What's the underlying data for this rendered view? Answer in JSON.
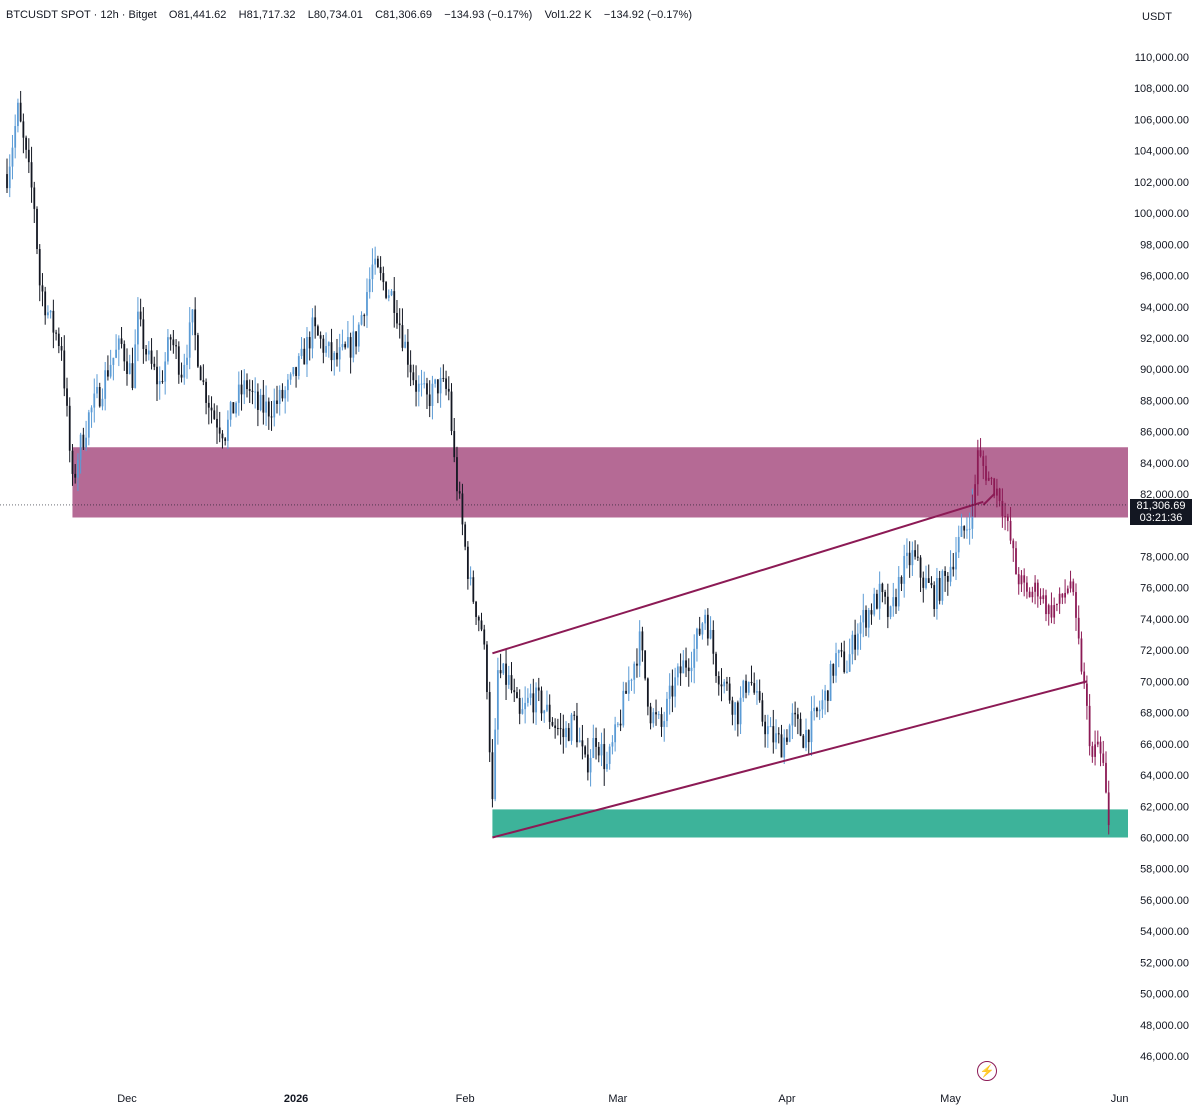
{
  "header": {
    "symbol": "BTCUSDT SPOT",
    "interval": "12h",
    "exchange": "Bitget",
    "open": "O81,441.62",
    "high": "H81,717.32",
    "low": "L80,734.01",
    "close": "C81,306.69",
    "change": "−134.93 (−0.17%)",
    "volume": "Vol1.22 K",
    "volume_change": "−134.92 (−0.17%)"
  },
  "price_scale": {
    "currency": "USDT",
    "ticks": [
      "110,000.00",
      "108,000.00",
      "106,000.00",
      "104,000.00",
      "102,000.00",
      "100,000.00",
      "98,000.00",
      "96,000.00",
      "94,000.00",
      "92,000.00",
      "90,000.00",
      "88,000.00",
      "86,000.00",
      "84,000.00",
      "82,000.00",
      "78,000.00",
      "76,000.00",
      "74,000.00",
      "72,000.00",
      "70,000.00",
      "68,000.00",
      "66,000.00",
      "64,000.00",
      "62,000.00",
      "60,000.00",
      "58,000.00",
      "56,000.00",
      "54,000.00",
      "52,000.00",
      "50,000.00",
      "48,000.00",
      "46,000.00"
    ]
  },
  "last_price": {
    "value": "81,306.69",
    "countdown": "03:21:36"
  },
  "time_scale": {
    "labels": [
      "Dec",
      "2026",
      "Feb",
      "Mar",
      "Apr",
      "May",
      "Jun"
    ]
  },
  "colors": {
    "up_candle": "#5b9bd5",
    "down_candle": "#131722",
    "projection": "#8c1a55",
    "resistance_zone": "#b56a95",
    "support_zone": "#3db39a",
    "channel_line": "#8c1a55"
  },
  "chart_data": {
    "type": "candlestick",
    "symbol": "BTCUSDT",
    "timeframe": "12h",
    "y_axis": {
      "min": 45000,
      "max": 111000,
      "unit": "USDT"
    },
    "x_axis": {
      "start": "2025-11-09",
      "end": "2026-06-01",
      "month_labels": [
        "Dec",
        "2026",
        "Feb",
        "Mar",
        "Apr",
        "May",
        "Jun"
      ]
    },
    "grid": false,
    "close_path": [
      [
        "2025-11-09",
        102500
      ],
      [
        "2025-11-11",
        106500
      ],
      [
        "2025-11-12",
        104500
      ],
      [
        "2025-11-14",
        100500
      ],
      [
        "2025-11-15",
        95500
      ],
      [
        "2025-11-17",
        93000
      ],
      [
        "2025-11-19",
        91500
      ],
      [
        "2025-11-20",
        87000
      ],
      [
        "2025-11-21",
        82500
      ],
      [
        "2025-11-22",
        84500
      ],
      [
        "2025-11-24",
        87000
      ],
      [
        "2025-11-26",
        88500
      ],
      [
        "2025-11-28",
        90500
      ],
      [
        "2025-11-30",
        91500
      ],
      [
        "2025-12-02",
        89500
      ],
      [
        "2025-12-03",
        93000
      ],
      [
        "2025-12-05",
        90500
      ],
      [
        "2025-12-07",
        89000
      ],
      [
        "2025-12-09",
        92000
      ],
      [
        "2025-12-11",
        90000
      ],
      [
        "2025-12-13",
        93000
      ],
      [
        "2025-12-15",
        89000
      ],
      [
        "2025-12-17",
        87000
      ],
      [
        "2025-12-19",
        86000
      ],
      [
        "2025-12-21",
        88000
      ],
      [
        "2025-12-23",
        89000
      ],
      [
        "2025-12-25",
        87500
      ],
      [
        "2025-12-27",
        87500
      ],
      [
        "2025-12-29",
        88000
      ],
      [
        "2025-12-31",
        89000
      ],
      [
        "2026-01-02",
        90500
      ],
      [
        "2026-01-04",
        92500
      ],
      [
        "2026-01-06",
        91500
      ],
      [
        "2026-01-08",
        90500
      ],
      [
        "2026-01-10",
        91000
      ],
      [
        "2026-01-12",
        92000
      ],
      [
        "2026-01-14",
        95000
      ],
      [
        "2026-01-15",
        96500
      ],
      [
        "2026-01-17",
        95500
      ],
      [
        "2026-01-19",
        94500
      ],
      [
        "2026-01-21",
        91500
      ],
      [
        "2026-01-23",
        89000
      ],
      [
        "2026-01-25",
        88000
      ],
      [
        "2026-01-27",
        89000
      ],
      [
        "2026-01-29",
        88500
      ],
      [
        "2026-01-30",
        84000
      ],
      [
        "2026-02-01",
        78500
      ],
      [
        "2026-02-02",
        76000
      ],
      [
        "2026-02-04",
        73500
      ],
      [
        "2026-02-05",
        70000
      ],
      [
        "2026-02-06",
        62000
      ],
      [
        "2026-02-07",
        70500
      ],
      [
        "2026-02-09",
        70000
      ],
      [
        "2026-02-11",
        67500
      ],
      [
        "2026-02-13",
        69000
      ],
      [
        "2026-02-15",
        68500
      ],
      [
        "2026-02-17",
        67500
      ],
      [
        "2026-02-19",
        66500
      ],
      [
        "2026-02-21",
        67500
      ],
      [
        "2026-02-23",
        64500
      ],
      [
        "2026-02-25",
        66500
      ],
      [
        "2026-02-27",
        64500
      ],
      [
        "2026-03-01",
        67000
      ],
      [
        "2026-03-03",
        70000
      ],
      [
        "2026-03-05",
        72500
      ],
      [
        "2026-03-07",
        68000
      ],
      [
        "2026-03-09",
        67000
      ],
      [
        "2026-03-11",
        69500
      ],
      [
        "2026-03-13",
        71000
      ],
      [
        "2026-03-15",
        72000
      ],
      [
        "2026-03-17",
        74500
      ],
      [
        "2026-03-19",
        71000
      ],
      [
        "2026-03-21",
        69500
      ],
      [
        "2026-03-23",
        68000
      ],
      [
        "2026-03-25",
        70500
      ],
      [
        "2026-03-27",
        68000
      ],
      [
        "2026-03-29",
        66500
      ],
      [
        "2026-03-31",
        66000
      ],
      [
        "2026-04-02",
        67500
      ],
      [
        "2026-04-04",
        66500
      ],
      [
        "2026-04-06",
        67500
      ],
      [
        "2026-04-08",
        69000
      ],
      [
        "2026-04-10",
        71500
      ],
      [
        "2026-04-12",
        71000
      ],
      [
        "2026-04-14",
        73500
      ],
      [
        "2026-04-16",
        74500
      ],
      [
        "2026-04-18",
        75500
      ],
      [
        "2026-04-20",
        74000
      ],
      [
        "2026-04-22",
        77000
      ],
      [
        "2026-04-24",
        78000
      ],
      [
        "2026-04-26",
        76500
      ],
      [
        "2026-04-28",
        75500
      ],
      [
        "2026-04-30",
        76500
      ],
      [
        "2026-05-02",
        78500
      ],
      [
        "2026-05-04",
        80000
      ],
      [
        "2026-05-05",
        81300
      ]
    ],
    "projection_path": [
      [
        "2026-05-05",
        81300
      ],
      [
        "2026-05-06",
        84500
      ],
      [
        "2026-05-08",
        83000
      ],
      [
        "2026-05-10",
        82000
      ],
      [
        "2026-05-12",
        79000
      ],
      [
        "2026-05-13",
        77000
      ],
      [
        "2026-05-15",
        75500
      ],
      [
        "2026-05-17",
        76000
      ],
      [
        "2026-05-19",
        74500
      ],
      [
        "2026-05-21",
        75000
      ],
      [
        "2026-05-23",
        76500
      ],
      [
        "2026-05-24",
        73500
      ],
      [
        "2026-05-25",
        71000
      ],
      [
        "2026-05-26",
        68000
      ],
      [
        "2026-05-27",
        65000
      ],
      [
        "2026-05-28",
        66000
      ],
      [
        "2026-05-29",
        64500
      ],
      [
        "2026-05-30",
        60500
      ]
    ],
    "drawings": {
      "resistance_zone": {
        "from": "2025-11-21",
        "to": "2026-06-01",
        "low": 80500,
        "high": 85000
      },
      "support_zone": {
        "from": "2026-02-06",
        "to": "2026-06-01",
        "low": 60000,
        "high": 61800
      },
      "channel_upper": [
        [
          "2026-02-06",
          71800
        ],
        [
          "2026-05-07",
          81500
        ]
      ],
      "channel_lower": [
        [
          "2026-02-06",
          60000
        ],
        [
          "2026-05-26",
          70000
        ]
      ],
      "breakout_line": [
        [
          "2026-05-07",
          81300
        ],
        [
          "2026-05-09",
          82000
        ]
      ]
    }
  }
}
